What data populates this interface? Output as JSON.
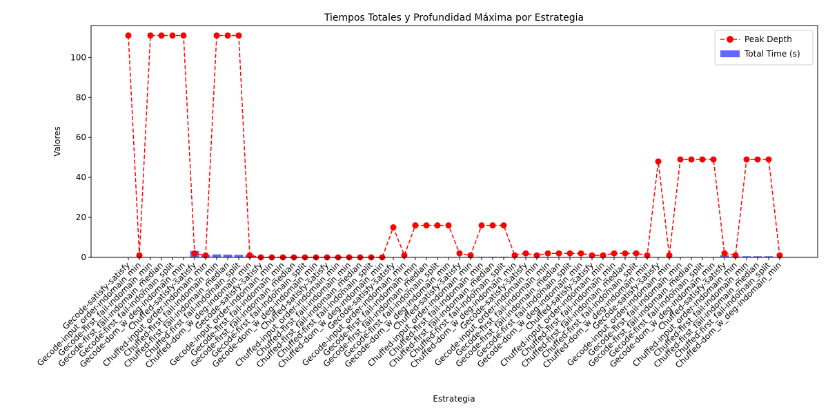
{
  "chart_data": {
    "type": "bar",
    "title": "Tiempos Totales y Profundidad Máxima por Estrategia",
    "xlabel": "Estrategia",
    "ylabel": "Valores",
    "ylim": [
      0,
      116
    ],
    "yticks": [
      0,
      20,
      40,
      60,
      80,
      100
    ],
    "legend": {
      "position": "top-right"
    },
    "categories": [
      "Gecode-satisfy-satisfy",
      "Gecode-input_order-indomain_min",
      "Gecode-first_fail-indomain_min",
      "Gecode-first_fail-indomain_median",
      "Gecode-first_fail-indomain_split",
      "Gecode-dom_w_deg-indomain_min",
      "Chuffed-satisfy-satisfy",
      "Chuffed-input_order-indomain_min",
      "Chuffed-first_fail-indomain_min",
      "Chuffed-first_fail-indomain_median",
      "Chuffed-first_fail-indomain_split",
      "Chuffed-dom_w_deg-indomain_min",
      "Gecode-satisfy-satisfy",
      "Gecode-input_order-indomain_min",
      "Gecode-first_fail-indomain_min",
      "Gecode-first_fail-indomain_median",
      "Gecode-first_fail-indomain_split",
      "Gecode-dom_w_deg-indomain_min",
      "Chuffed-satisfy-satisfy",
      "Chuffed-input_order-indomain_min",
      "Chuffed-first_fail-indomain_min",
      "Chuffed-first_fail-indomain_median",
      "Chuffed-first_fail-indomain_split",
      "Chuffed-dom_w_deg-indomain_min",
      "Gecode-satisfy-satisfy",
      "Gecode-input_order-indomain_min",
      "Gecode-first_fail-indomain_min",
      "Gecode-first_fail-indomain_median",
      "Gecode-first_fail-indomain_split",
      "Gecode-dom_w_deg-indomain_min",
      "Chuffed-satisfy-satisfy",
      "Chuffed-input_order-indomain_min",
      "Chuffed-first_fail-indomain_min",
      "Chuffed-first_fail-indomain_median",
      "Chuffed-first_fail-indomain_split",
      "Chuffed-dom_w_deg-indomain_min",
      "Gecode-satisfy-satisfy",
      "Gecode-input_order-indomain_min",
      "Gecode-first_fail-indomain_min",
      "Gecode-first_fail-indomain_median",
      "Gecode-first_fail-indomain_split",
      "Gecode-dom_w_deg-indomain_min",
      "Chuffed-satisfy-satisfy",
      "Chuffed-input_order-indomain_min",
      "Chuffed-first_fail-indomain_min",
      "Chuffed-first_fail-indomain_median",
      "Chuffed-first_fail-indomain_split",
      "Chuffed-dom_w_deg-indomain_min",
      "Gecode-satisfy-satisfy",
      "Gecode-input_order-indomain_min",
      "Gecode-first_fail-indomain_min",
      "Gecode-first_fail-indomain_median",
      "Gecode-first_fail-indomain_split",
      "Gecode-dom_w_deg-indomain_min",
      "Chuffed-satisfy-satisfy",
      "Chuffed-input_order-indomain_min",
      "Chuffed-first_fail-indomain_min",
      "Chuffed-first_fail-indomain_median",
      "Chuffed-first_fail-indomain_split",
      "Chuffed-dom_w_deg-indomain_min"
    ],
    "series": [
      {
        "name": "Peak Depth",
        "kind": "line",
        "color": "#ff0000",
        "style": "dashed",
        "marker": "circle",
        "values": [
          111,
          1,
          111,
          111,
          111,
          111,
          2,
          1,
          111,
          111,
          111,
          1,
          0,
          0,
          0,
          0,
          0,
          0,
          0,
          0,
          0,
          0,
          0,
          0,
          15,
          1,
          16,
          16,
          16,
          16,
          2,
          1,
          16,
          16,
          16,
          1,
          2,
          1,
          2,
          2,
          2,
          2,
          1,
          1,
          2,
          2,
          2,
          1,
          48,
          1,
          49,
          49,
          49,
          49,
          2,
          1,
          49,
          49,
          49,
          1
        ]
      },
      {
        "name": "Total Time (s)",
        "kind": "bar",
        "color": "#6666ff",
        "values": [
          0,
          0,
          0,
          0,
          0,
          0,
          3.2,
          1.2,
          1.5,
          1.4,
          1.3,
          1.2,
          0.1,
          0.05,
          0.05,
          0.05,
          0.05,
          0.05,
          0.05,
          0.05,
          0.05,
          0.05,
          0.05,
          0.05,
          0,
          0,
          0,
          0,
          0,
          0,
          0,
          0,
          0.3,
          0.3,
          0.3,
          0.1,
          0,
          0,
          0,
          0,
          0,
          0,
          0,
          0,
          0,
          0,
          0,
          0,
          0,
          0,
          0,
          0,
          0,
          0,
          1.0,
          0.5,
          0.6,
          0.6,
          0.6,
          0.2
        ]
      }
    ]
  }
}
